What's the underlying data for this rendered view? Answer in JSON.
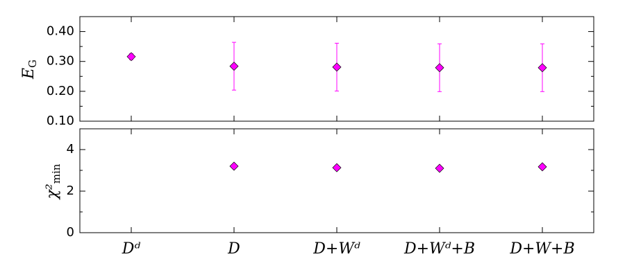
{
  "chart_data": [
    {
      "type": "errorbar",
      "ylabel": "E",
      "ylabel_sub": "G",
      "values": [
        0.316,
        0.284,
        0.281,
        0.279,
        0.279
      ],
      "errors": [
        0.01,
        0.08,
        0.08,
        0.08,
        0.08
      ],
      "color": "#ff00ff",
      "ylim": [
        0.1,
        0.45
      ],
      "yticks": [
        {
          "value": 0.1,
          "label": "0.10"
        },
        {
          "value": 0.2,
          "label": "0.20"
        },
        {
          "value": 0.3,
          "label": "0.30"
        },
        {
          "value": 0.4,
          "label": "0.40"
        }
      ],
      "minor_yticks": [
        0.15,
        0.25,
        0.35
      ]
    },
    {
      "type": "scatter",
      "ylabel": "χ²",
      "ylabel_sub": "min",
      "categories": [
        "Dᵈ",
        "D",
        "D+Wᵈ",
        "D+Wᵈ+B",
        "D+W+B"
      ],
      "values": [
        null,
        3.2,
        3.13,
        3.1,
        3.17
      ],
      "color": "#ff00ff",
      "ylim": [
        0,
        5
      ],
      "yticks": [
        0,
        2,
        4
      ],
      "minor_yticks": [
        1,
        3
      ]
    }
  ]
}
